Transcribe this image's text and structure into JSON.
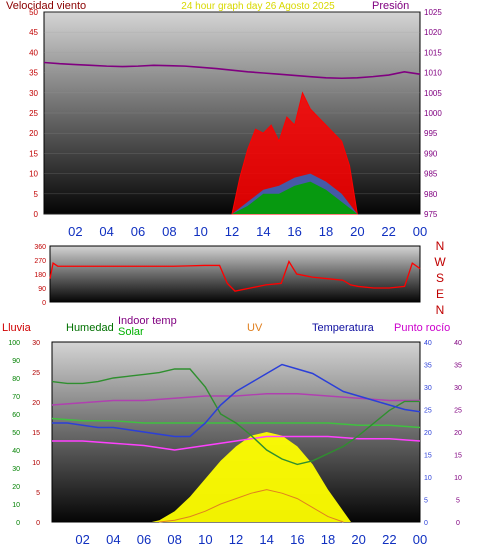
{
  "colors": {
    "wind": "#ff0000",
    "gust": "#1f6fd0",
    "avg": "#00a000",
    "pressure": "#800080",
    "direction": "#ff0000",
    "humidity": "#2f8f2f",
    "indoor": "#c0c000",
    "solar": "#ffff00",
    "uv": "#e08020",
    "temp": "#2b3fd8",
    "dew": "#cc00cc",
    "rain": "#d0d000"
  },
  "titles": {
    "wind": "Velocidad viento",
    "center": "24 hour graph day   26 Agosto 2025",
    "pressure": "Presión",
    "rain": "Lluvia",
    "humidity": "Humedad",
    "indoor": "Indoor temp",
    "solar": "Solar",
    "uv": "UV",
    "temp": "Temperatura",
    "dew": "Punto rocío"
  },
  "compass": [
    "N",
    "W",
    "S",
    "E",
    "N"
  ],
  "x_hours": [
    "02",
    "04",
    "06",
    "08",
    "10",
    "12",
    "14",
    "16",
    "18",
    "20",
    "22",
    "00"
  ],
  "chart_data": [
    {
      "type": "line",
      "name": "wind-pressure",
      "left_axis": {
        "ticks": [
          0,
          5,
          10,
          15,
          20,
          25,
          30,
          35,
          40,
          45,
          50
        ],
        "range": [
          0,
          50
        ]
      },
      "right_axis": {
        "ticks": [
          975,
          980,
          985,
          990,
          995,
          1000,
          1005,
          1010,
          1015,
          1020,
          1025
        ],
        "range": [
          975,
          1025
        ]
      },
      "pressure": {
        "x": [
          0,
          1,
          2,
          3,
          4,
          5,
          6,
          7,
          8,
          9,
          10,
          11,
          12,
          13,
          14,
          15,
          16,
          17,
          18,
          19,
          20,
          21,
          22,
          23,
          24
        ],
        "y": [
          1012.5,
          1012.2,
          1012.0,
          1011.8,
          1011.6,
          1011.5,
          1011.6,
          1011.8,
          1011.7,
          1011.6,
          1011.3,
          1011.0,
          1010.6,
          1010.2,
          1009.9,
          1009.6,
          1009.3,
          1009.0,
          1008.7,
          1008.6,
          1008.7,
          1009.0,
          1009.4,
          1010.2,
          1009.6
        ]
      },
      "wind_envelope": {
        "x": [
          12.0,
          12.5,
          13.0,
          13.5,
          14.0,
          14.5,
          15.0,
          15.5,
          16.0,
          16.5,
          17.0,
          17.5,
          18.0,
          18.5,
          19.0,
          19.5,
          20.0
        ],
        "y": [
          0,
          9,
          16,
          21,
          20,
          22,
          18,
          24,
          22,
          30,
          26,
          24,
          22,
          20,
          18,
          12,
          0
        ]
      },
      "gust_envelope": {
        "x": [
          12.0,
          13.0,
          14.0,
          15.0,
          16.0,
          17.0,
          18.0,
          19.0,
          20.0
        ],
        "y": [
          0,
          3,
          6,
          7,
          9,
          10,
          8,
          5,
          0
        ]
      },
      "avg_envelope": {
        "x": [
          12.0,
          13.0,
          14.0,
          15.0,
          16.0,
          17.0,
          18.0,
          19.0,
          20.0
        ],
        "y": [
          0,
          2,
          5,
          5,
          7,
          8,
          6,
          3,
          0
        ]
      }
    },
    {
      "type": "line",
      "name": "wind-direction",
      "left_axis": {
        "ticks": [
          0,
          90,
          180,
          270,
          360
        ],
        "range": [
          0,
          360
        ]
      },
      "x": [
        0,
        0.2,
        0.5,
        1,
        2,
        3,
        4,
        5,
        6,
        7,
        8,
        9,
        10,
        11,
        11.5,
        12,
        12.5,
        13,
        14,
        15,
        15.5,
        16,
        16.5,
        17,
        18,
        19,
        19.5,
        20,
        21,
        22,
        23,
        23.5,
        24
      ],
      "y": [
        150,
        250,
        230,
        230,
        230,
        230,
        230,
        230,
        230,
        230,
        230,
        232,
        235,
        235,
        120,
        70,
        80,
        90,
        110,
        120,
        260,
        180,
        170,
        160,
        150,
        140,
        110,
        100,
        90,
        90,
        100,
        250,
        215
      ]
    },
    {
      "type": "line",
      "name": "humidity-temperature",
      "axes": {
        "rain": {
          "ticks": [
            0,
            10,
            20,
            30,
            40,
            50,
            60,
            70,
            80,
            90,
            100
          ],
          "range": [
            0,
            100
          ]
        },
        "humidity": {
          "ticks": [
            0,
            5,
            10,
            15,
            20,
            25,
            30
          ],
          "range": [
            0,
            30
          ]
        },
        "temp": {
          "ticks": [
            0,
            5,
            10,
            15,
            20,
            25,
            30,
            35,
            40
          ],
          "range": [
            0,
            40
          ]
        },
        "dew": {
          "ticks": [
            0,
            5,
            10,
            15,
            20,
            25,
            30,
            35,
            40
          ],
          "range": [
            0,
            40
          ]
        }
      },
      "humidity": {
        "x": [
          0,
          1,
          2,
          3,
          4,
          5,
          6,
          7,
          8,
          9,
          10,
          11,
          12,
          13,
          14,
          15,
          16,
          17,
          18,
          19,
          20,
          21,
          22,
          23,
          24
        ],
        "y": [
          78,
          77,
          77,
          78,
          80,
          81,
          82,
          83,
          85,
          85,
          75,
          60,
          55,
          48,
          40,
          35,
          32,
          34,
          38,
          42,
          48,
          55,
          62,
          67,
          67
        ]
      },
      "temperature": {
        "x": [
          0,
          1,
          2,
          3,
          4,
          5,
          6,
          7,
          8,
          9,
          10,
          11,
          12,
          13,
          14,
          15,
          16,
          17,
          18,
          19,
          20,
          21,
          22,
          23,
          24
        ],
        "y": [
          22,
          22,
          21.5,
          21,
          21,
          20.5,
          20,
          19.5,
          19,
          19,
          22,
          26,
          29,
          31,
          33,
          35,
          34,
          33,
          31,
          29,
          28,
          27,
          26,
          25,
          24.5
        ]
      },
      "dew_point": {
        "x": [
          0,
          2,
          4,
          6,
          8,
          10,
          12,
          14,
          16,
          18,
          20,
          22,
          24
        ],
        "y": [
          26,
          26.5,
          27,
          27,
          27.5,
          28,
          28,
          28.5,
          28.5,
          28,
          27.5,
          27,
          27
        ]
      },
      "indoor_temp": {
        "x": [
          0,
          2,
          4,
          6,
          8,
          10,
          12,
          14,
          16,
          18,
          20,
          22,
          24
        ],
        "y": [
          23,
          22.5,
          22.5,
          22,
          22,
          22,
          22,
          22,
          22,
          22,
          21.5,
          21.5,
          21
        ]
      },
      "dew_magenta": {
        "x": [
          0,
          2,
          4,
          6,
          8,
          10,
          12,
          14,
          16,
          18,
          20,
          22,
          24
        ],
        "y": [
          18,
          18,
          17.5,
          17,
          16,
          17,
          18,
          19,
          19,
          19,
          18.5,
          18.5,
          18
        ]
      },
      "solar": {
        "x": [
          6.5,
          7,
          8,
          9,
          10,
          11,
          12,
          13,
          14,
          15,
          16,
          17,
          18,
          19,
          19.5
        ],
        "y": [
          0,
          1,
          6,
          14,
          24,
          34,
          42,
          48,
          50,
          48,
          42,
          32,
          18,
          6,
          0
        ]
      },
      "uv": {
        "x": [
          7,
          8,
          9,
          10,
          11,
          12,
          13,
          14,
          15,
          16,
          17,
          18,
          19
        ],
        "y": [
          0,
          1,
          3,
          6,
          10,
          13,
          16,
          18,
          16,
          13,
          8,
          3,
          0
        ]
      }
    }
  ]
}
